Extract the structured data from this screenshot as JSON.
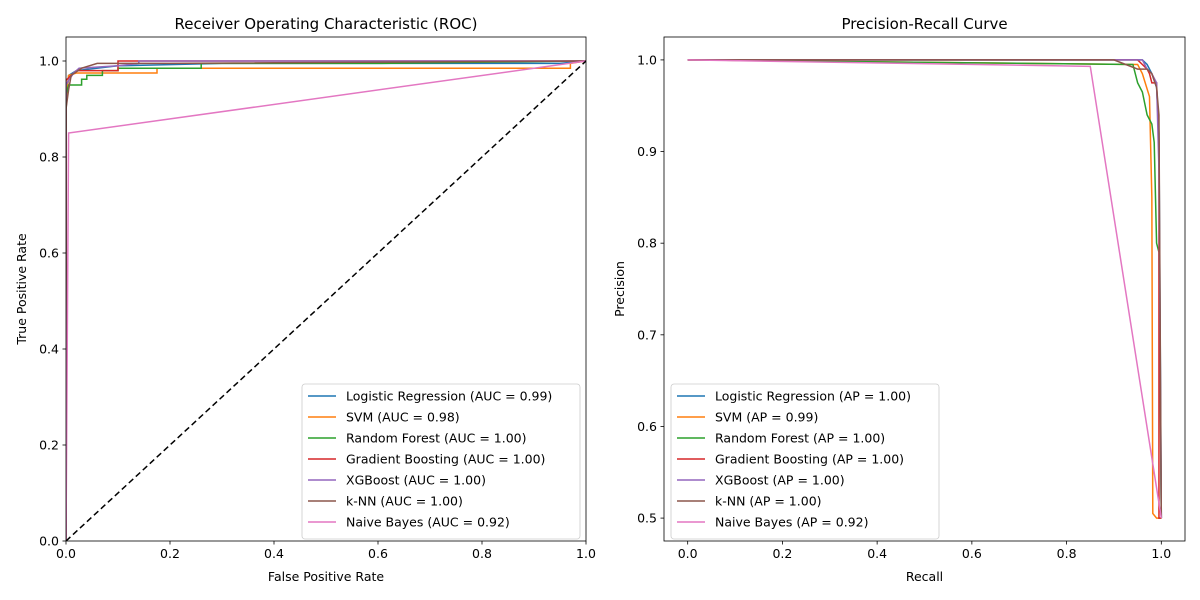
{
  "chart_data": [
    {
      "type": "line",
      "title": "Receiver Operating Characteristic (ROC)",
      "xlabel": "False Positive Rate",
      "ylabel": "True Positive Rate",
      "xlim": [
        0,
        1
      ],
      "ylim": [
        0,
        1.05
      ],
      "xticks": [
        0.0,
        0.2,
        0.4,
        0.6,
        0.8,
        1.0
      ],
      "yticks": [
        0.0,
        0.2,
        0.4,
        0.6,
        0.8,
        1.0
      ],
      "xtick_labels": [
        "0.0",
        "0.2",
        "0.4",
        "0.6",
        "0.8",
        "1.0"
      ],
      "ytick_labels": [
        "0.0",
        "0.2",
        "0.4",
        "0.6",
        "0.8",
        "1.0"
      ],
      "grid": false,
      "legend_position": "lower-right",
      "series": [
        {
          "name": "Logistic Regression (AUC = 0.99)",
          "color": "#1f77b4",
          "points": [
            [
              0,
              0
            ],
            [
              0,
              0.9
            ],
            [
              0.005,
              0.97
            ],
            [
              0.02,
              0.98
            ],
            [
              0.1,
              0.99
            ],
            [
              0.3,
              0.995
            ],
            [
              0.95,
              0.995
            ],
            [
              1,
              1
            ]
          ]
        },
        {
          "name": "SVM (AUC = 0.98)",
          "color": "#ff7f0e",
          "points": [
            [
              0,
              0
            ],
            [
              0,
              0.92
            ],
            [
              0.005,
              0.97
            ],
            [
              0.02,
              0.975
            ],
            [
              0.175,
              0.975
            ],
            [
              0.175,
              0.985
            ],
            [
              0.97,
              0.985
            ],
            [
              0.97,
              0.995
            ],
            [
              1,
              1
            ]
          ]
        },
        {
          "name": "Random Forest (AUC = 1.00)",
          "color": "#2ca02c",
          "points": [
            [
              0,
              0
            ],
            [
              0,
              0.93
            ],
            [
              0.005,
              0.95
            ],
            [
              0.03,
              0.95
            ],
            [
              0.03,
              0.962
            ],
            [
              0.04,
              0.962
            ],
            [
              0.04,
              0.97
            ],
            [
              0.07,
              0.97
            ],
            [
              0.07,
              0.98
            ],
            [
              0.1,
              0.98
            ],
            [
              0.1,
              0.985
            ],
            [
              0.26,
              0.985
            ],
            [
              0.26,
              0.995
            ],
            [
              0.6,
              0.995
            ],
            [
              1,
              1
            ]
          ]
        },
        {
          "name": "Gradient Boosting (AUC = 1.00)",
          "color": "#d62728",
          "points": [
            [
              0,
              0
            ],
            [
              0,
              0.96
            ],
            [
              0.005,
              0.965
            ],
            [
              0.01,
              0.97
            ],
            [
              0.02,
              0.98
            ],
            [
              0.1,
              0.98
            ],
            [
              0.1,
              1.0
            ],
            [
              1,
              1
            ]
          ]
        },
        {
          "name": "XGBoost (AUC = 1.00)",
          "color": "#9467bd",
          "points": [
            [
              0,
              0
            ],
            [
              0,
              0.95
            ],
            [
              0.005,
              0.96
            ],
            [
              0.015,
              0.975
            ],
            [
              0.025,
              0.985
            ],
            [
              0.1,
              0.99
            ],
            [
              0.14,
              0.995
            ],
            [
              0.14,
              1.0
            ],
            [
              1,
              1
            ]
          ]
        },
        {
          "name": "k-NN (AUC = 1.00)",
          "color": "#8c564b",
          "points": [
            [
              0,
              0
            ],
            [
              0,
              0.9
            ],
            [
              0.005,
              0.94
            ],
            [
              0.01,
              0.97
            ],
            [
              0.03,
              0.985
            ],
            [
              0.06,
              0.995
            ],
            [
              0.2,
              0.995
            ],
            [
              1,
              1
            ]
          ]
        },
        {
          "name": "Naive Bayes (AUC = 0.92)",
          "color": "#e377c2",
          "points": [
            [
              0,
              0
            ],
            [
              0.005,
              0.85
            ],
            [
              1,
              1
            ]
          ]
        },
        {
          "name": "",
          "color": "#000000",
          "dashed": true,
          "points": [
            [
              0,
              0
            ],
            [
              1,
              1
            ]
          ]
        }
      ]
    },
    {
      "type": "line",
      "title": "Precision-Recall Curve",
      "xlabel": "Recall",
      "ylabel": "Precision",
      "xlim": [
        -0.05,
        1.05
      ],
      "ylim": [
        0.475,
        1.025
      ],
      "xticks": [
        0.0,
        0.2,
        0.4,
        0.6,
        0.8,
        1.0
      ],
      "yticks": [
        0.5,
        0.6,
        0.7,
        0.8,
        0.9,
        1.0
      ],
      "xtick_labels": [
        "0.0",
        "0.2",
        "0.4",
        "0.6",
        "0.8",
        "1.0"
      ],
      "ytick_labels": [
        "0.5",
        "0.6",
        "0.7",
        "0.8",
        "0.9",
        "1.0"
      ],
      "grid": false,
      "legend_position": "lower-left",
      "series": [
        {
          "name": "Logistic Regression (AP = 1.00)",
          "color": "#1f77b4",
          "points": [
            [
              0,
              1.0
            ],
            [
              0.96,
              1.0
            ],
            [
              0.97,
              0.995
            ],
            [
              0.98,
              0.985
            ],
            [
              0.99,
              0.97
            ],
            [
              0.995,
              0.92
            ],
            [
              1.0,
              0.5
            ]
          ]
        },
        {
          "name": "SVM (AP = 0.99)",
          "color": "#ff7f0e",
          "points": [
            [
              0,
              1.0
            ],
            [
              0.95,
              0.995
            ],
            [
              0.96,
              0.985
            ],
            [
              0.975,
              0.96
            ],
            [
              0.98,
              0.85
            ],
            [
              0.982,
              0.505
            ],
            [
              0.99,
              0.5
            ],
            [
              1.0,
              0.5
            ]
          ]
        },
        {
          "name": "Random Forest (AP = 1.00)",
          "color": "#2ca02c",
          "points": [
            [
              0,
              1.0
            ],
            [
              0.94,
              0.995
            ],
            [
              0.95,
              0.975
            ],
            [
              0.96,
              0.965
            ],
            [
              0.97,
              0.94
            ],
            [
              0.98,
              0.93
            ],
            [
              0.985,
              0.91
            ],
            [
              0.99,
              0.8
            ],
            [
              0.995,
              0.79
            ],
            [
              1.0,
              0.5
            ]
          ]
        },
        {
          "name": "Gradient Boosting (AP = 1.00)",
          "color": "#d62728",
          "points": [
            [
              0,
              1.0
            ],
            [
              0.95,
              1.0
            ],
            [
              0.96,
              0.995
            ],
            [
              0.97,
              0.99
            ],
            [
              0.975,
              0.985
            ],
            [
              0.98,
              0.975
            ],
            [
              0.99,
              0.975
            ],
            [
              0.995,
              0.91
            ],
            [
              0.995,
              0.5
            ],
            [
              1.0,
              0.5
            ]
          ]
        },
        {
          "name": "XGBoost (AP = 1.00)",
          "color": "#9467bd",
          "points": [
            [
              0,
              1.0
            ],
            [
              0.96,
              1.0
            ],
            [
              0.97,
              0.99
            ],
            [
              0.98,
              0.985
            ],
            [
              0.99,
              0.975
            ],
            [
              0.995,
              0.88
            ],
            [
              1.0,
              0.5
            ]
          ]
        },
        {
          "name": "k-NN (AP = 1.00)",
          "color": "#8c564b",
          "points": [
            [
              0,
              1.0
            ],
            [
              0.9,
              1.0
            ],
            [
              0.95,
              0.99
            ],
            [
              0.97,
              0.99
            ],
            [
              0.98,
              0.985
            ],
            [
              0.99,
              0.97
            ],
            [
              0.995,
              0.94
            ],
            [
              1.0,
              0.5
            ]
          ]
        },
        {
          "name": "Naive Bayes (AP = 0.92)",
          "color": "#e377c2",
          "points": [
            [
              0,
              1.0
            ],
            [
              0.85,
              0.993
            ],
            [
              1.0,
              0.5
            ]
          ]
        }
      ]
    }
  ]
}
